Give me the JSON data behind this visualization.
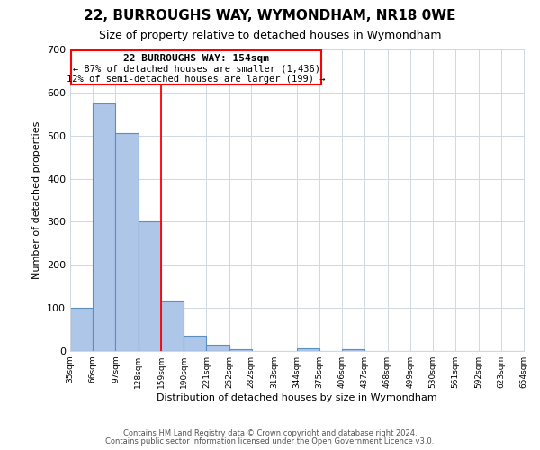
{
  "title": "22, BURROUGHS WAY, WYMONDHAM, NR18 0WE",
  "subtitle": "Size of property relative to detached houses in Wymondham",
  "xlabel": "Distribution of detached houses by size in Wymondham",
  "ylabel": "Number of detached properties",
  "bin_edges": [
    35,
    66,
    97,
    128,
    159,
    190,
    221,
    252,
    282,
    313,
    344,
    375,
    406,
    437,
    468,
    499,
    530,
    561,
    592,
    623,
    654
  ],
  "bar_heights": [
    100,
    575,
    505,
    300,
    118,
    35,
    14,
    5,
    0,
    0,
    7,
    0,
    5,
    0,
    0,
    0,
    0,
    0,
    0,
    0
  ],
  "bar_color": "#aec6e8",
  "bar_edge_color": "#5a8fc2",
  "vline_x": 159,
  "vline_color": "red",
  "annotation_title": "22 BURROUGHS WAY: 154sqm",
  "annotation_line1": "← 87% of detached houses are smaller (1,436)",
  "annotation_line2": "12% of semi-detached houses are larger (199) →",
  "annotation_box_color": "red",
  "annotation_text_color": "black",
  "ylim": [
    0,
    700
  ],
  "yticks": [
    0,
    100,
    200,
    300,
    400,
    500,
    600,
    700
  ],
  "tick_labels": [
    "35sqm",
    "66sqm",
    "97sqm",
    "128sqm",
    "159sqm",
    "190sqm",
    "221sqm",
    "252sqm",
    "282sqm",
    "313sqm",
    "344sqm",
    "375sqm",
    "406sqm",
    "437sqm",
    "468sqm",
    "499sqm",
    "530sqm",
    "561sqm",
    "592sqm",
    "623sqm",
    "654sqm"
  ],
  "footer_line1": "Contains HM Land Registry data © Crown copyright and database right 2024.",
  "footer_line2": "Contains public sector information licensed under the Open Government Licence v3.0.",
  "background_color": "#ffffff",
  "grid_color": "#d0d8e0",
  "title_fontsize": 11,
  "subtitle_fontsize": 9
}
